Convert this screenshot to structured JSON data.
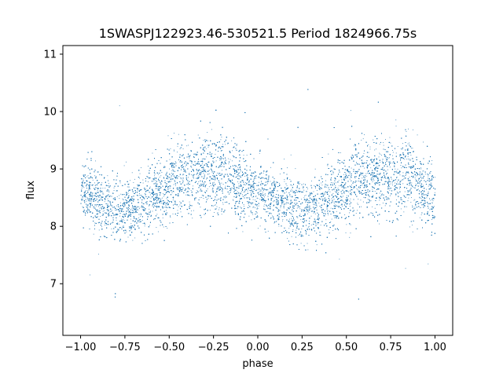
{
  "chart_data": {
    "type": "scatter",
    "title": "1SWASPJ122923.46-530521.5 Period 1824966.75s",
    "xlabel": "phase",
    "ylabel": "flux",
    "xlim": [
      -1.1,
      1.1
    ],
    "ylim": [
      6.1,
      11.15
    ],
    "xticks": [
      -1.0,
      -0.75,
      -0.5,
      -0.25,
      0.0,
      0.25,
      0.5,
      0.75,
      1.0
    ],
    "xtick_labels": [
      "−1.00",
      "−0.75",
      "−0.50",
      "−0.25",
      "0.00",
      "0.25",
      "0.50",
      "0.75",
      "1.00"
    ],
    "yticks": [
      7,
      8,
      9,
      10,
      11
    ],
    "ytick_labels": [
      "7",
      "8",
      "9",
      "10",
      "11"
    ],
    "grid": false,
    "marker_color": "#1f77b4",
    "marker_size": "tiny",
    "x_range": [
      -1.0,
      1.0
    ],
    "folded": true,
    "series": [
      {
        "x": [
          -1.0,
          -0.95,
          -0.9,
          -0.85,
          -0.8,
          -0.75,
          -0.7,
          -0.65,
          -0.6,
          -0.55,
          -0.5,
          -0.45,
          -0.4,
          -0.35,
          -0.3,
          -0.25,
          -0.2,
          -0.15,
          -0.1,
          -0.05,
          0.0
        ],
        "y": [
          8.7,
          8.55,
          8.45,
          8.35,
          8.3,
          8.3,
          8.35,
          8.4,
          8.55,
          8.6,
          8.7,
          8.8,
          8.85,
          8.85,
          8.9,
          8.85,
          8.9,
          8.85,
          8.75,
          8.6,
          8.5
        ],
        "y_spread": [
          0.35,
          0.35,
          0.35,
          0.35,
          0.35,
          0.35,
          0.35,
          0.35,
          0.4,
          0.4,
          0.45,
          0.45,
          0.45,
          0.45,
          0.45,
          0.45,
          0.45,
          0.45,
          0.45,
          0.4,
          0.35
        ]
      }
    ],
    "points_per_cycle": 9000
  }
}
